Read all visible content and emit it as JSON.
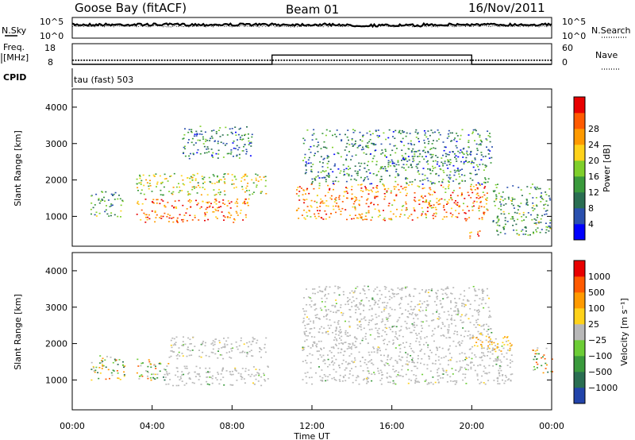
{
  "header": {
    "station": "Goose Bay (fitACF)",
    "beam": "Beam 01",
    "date": "16/Nov/2011"
  },
  "panel_labels": {
    "nsky": "N.Sky",
    "nsearch": "N.Search",
    "freq_line1": "Freq.",
    "freq_line2": "[MHz]",
    "nave": "Nave",
    "cpid": "CPID",
    "mode": "tau (fast) 503"
  },
  "chart_data": [
    {
      "type": "line",
      "name": "noise-panel",
      "y_left_ticks": [
        "10^5",
        "10^0"
      ],
      "y_right_ticks": [
        "10^5",
        "10^0"
      ],
      "series": [
        {
          "name": "N.Sky",
          "style": "solid"
        },
        {
          "name": "N.Search",
          "style": "dotted"
        }
      ]
    },
    {
      "type": "line",
      "name": "freq-nave-panel",
      "y_left_ticks": [
        "18",
        "8"
      ],
      "y_right_ticks": [
        "60",
        "0"
      ],
      "x": [
        "00:00",
        "10:00",
        "10:00",
        "20:00",
        "20:00",
        "24:00"
      ],
      "series": [
        {
          "name": "Freq.",
          "style": "dotted",
          "values": [
            10,
            10,
            10,
            10,
            10,
            10
          ]
        },
        {
          "name": "Nave",
          "style": "solid",
          "values": [
            0,
            0,
            27,
            27,
            0,
            0
          ]
        }
      ]
    },
    {
      "type": "heatmap",
      "name": "power-panel",
      "ylabel": "Slant Range [km]",
      "ylim": [
        180,
        4500
      ],
      "y_ticks": [
        1000,
        2000,
        3000,
        4000
      ],
      "colorbar_label": "Power [dB]",
      "colorbar_ticks": [
        4,
        8,
        12,
        16,
        20,
        24,
        28
      ],
      "colorbar_colors": [
        "#0000ff",
        "#2a50ae",
        "#2a6e52",
        "#3a9a3c",
        "#7fcf2b",
        "#ffd21a",
        "#ff9a00",
        "#ff5a00",
        "#e80000"
      ],
      "echo_regions": [
        {
          "t0": 0.9,
          "t1": 2.5,
          "r0": 1000,
          "r1": 1700,
          "level": 0.35
        },
        {
          "t0": 3.2,
          "t1": 9.8,
          "r0": 1600,
          "r1": 2200,
          "level": 0.55
        },
        {
          "t0": 3.2,
          "t1": 8.8,
          "r0": 850,
          "r1": 1500,
          "level": 0.8
        },
        {
          "t0": 5.5,
          "t1": 9.0,
          "r0": 2600,
          "r1": 3500,
          "level": 0.3
        },
        {
          "t0": 11.2,
          "t1": 20.8,
          "r0": 900,
          "r1": 1900,
          "level": 0.75
        },
        {
          "t0": 11.5,
          "t1": 21.0,
          "r0": 1900,
          "r1": 3400,
          "level": 0.3
        },
        {
          "t0": 19.8,
          "t1": 20.5,
          "r0": 400,
          "r1": 650,
          "level": 0.85
        },
        {
          "t0": 21.0,
          "t1": 24.0,
          "r0": 500,
          "r1": 1900,
          "level": 0.35
        }
      ]
    },
    {
      "type": "heatmap",
      "name": "velocity-panel",
      "ylabel": "Slant Range [km]",
      "ylim": [
        180,
        4500
      ],
      "y_ticks": [
        1000,
        2000,
        3000,
        4000
      ],
      "xlabel": "Time UT",
      "x_ticks": [
        "00:00",
        "04:00",
        "08:00",
        "12:00",
        "16:00",
        "20:00",
        "00:00"
      ],
      "colorbar_label": "Velocity [m s⁻¹]",
      "colorbar_ticks": [
        "1000",
        "500",
        "100",
        "25",
        "−25",
        "−100",
        "−500",
        "−1000"
      ],
      "colorbar_colors": [
        "#2244aa",
        "#2a6e52",
        "#3a9a3c",
        "#6ccd36",
        "#b8b8b8",
        "#ffd21a",
        "#ff9a00",
        "#ff5a00",
        "#e80000"
      ],
      "echo_regions": [
        {
          "t0": 0.9,
          "t1": 2.6,
          "r0": 1000,
          "r1": 1700,
          "kind": "mixed"
        },
        {
          "t0": 3.2,
          "t1": 4.8,
          "r0": 1000,
          "r1": 1600,
          "kind": "mixed"
        },
        {
          "t0": 4.8,
          "t1": 9.8,
          "r0": 1600,
          "r1": 2200,
          "kind": "ground"
        },
        {
          "t0": 4.5,
          "t1": 9.8,
          "r0": 850,
          "r1": 1400,
          "kind": "ground"
        },
        {
          "t0": 11.5,
          "t1": 22.0,
          "r0": 900,
          "r1": 2000,
          "kind": "ground"
        },
        {
          "t0": 11.5,
          "t1": 21.0,
          "r0": 2000,
          "r1": 3600,
          "kind": "ground"
        },
        {
          "t0": 20.0,
          "t1": 22.0,
          "r0": 1800,
          "r1": 2300,
          "kind": "negative"
        },
        {
          "t0": 23.0,
          "t1": 24.0,
          "r0": 1200,
          "r1": 1900,
          "kind": "mixed"
        }
      ]
    }
  ]
}
